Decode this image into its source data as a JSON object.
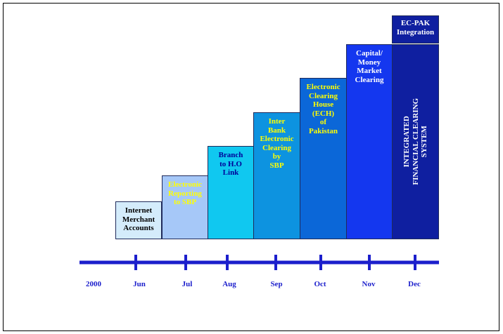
{
  "steps": [
    {
      "label": "Internet\nMerchant\nAccounts"
    },
    {
      "label": "Electronic\nReporting\nto SBP"
    },
    {
      "label": "Branch\nto H.O\nLink"
    },
    {
      "label": "Inter\nBank\nElectronic\nClearing\nby\nSBP"
    },
    {
      "label": "Electronic\nClearing\nHouse\n(ECH)\nof\nPakistan"
    },
    {
      "label": "Capital/\nMoney\nMarket\nClearing"
    },
    {
      "label": "INTEGRATED\nFINANCIAL CLEARING\nSYSTEM"
    }
  ],
  "top_block": {
    "label": "EC-PAK\nIntegration"
  },
  "timeline": {
    "labels": [
      "2000",
      "Jun",
      "Jul",
      "Aug",
      "Sep",
      "Oct",
      "Nov",
      "Dec"
    ]
  },
  "colors": {
    "timeline": "#1c1fcc",
    "step_fills": [
      "#d4ecfb",
      "#a6c8f8",
      "#10c8f0",
      "#0d93e0",
      "#0b67d8",
      "#1437ef",
      "#0f1fa0"
    ]
  }
}
